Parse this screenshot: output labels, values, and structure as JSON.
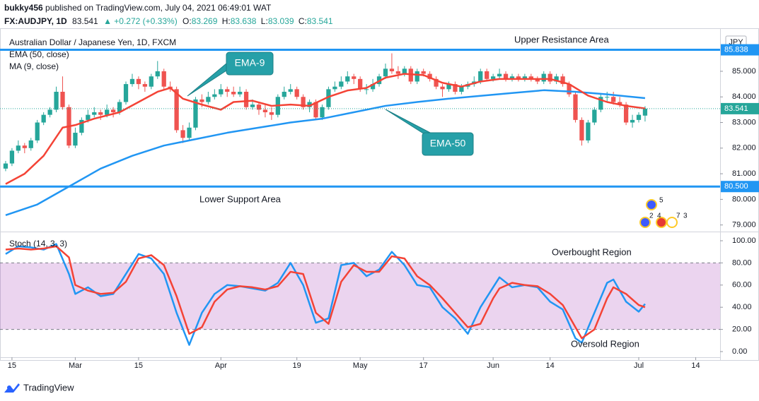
{
  "header": {
    "author": "bukky456",
    "published": " published on TradingView.com, July 04, 2021 06:49:01 WAT",
    "symbol": "FX:AUDJPY, 1D",
    "price": "83.541",
    "change": "▲ +0.272 (+0.33%)",
    "quote": [
      {
        "label": "O:",
        "value": "83.269"
      },
      {
        "label": "H:",
        "value": "83.638"
      },
      {
        "label": "L:",
        "value": "83.039"
      },
      {
        "label": "C:",
        "value": "83.541"
      }
    ]
  },
  "chart_data": [
    {
      "type": "candlestick",
      "title": "Australian Dollar / Japanese Yen, 1D, FXCM",
      "currency": "JPY",
      "up_color": "#26a69a",
      "down_color": "#ef5350",
      "xlim": [
        -0.89,
        112.85
      ],
      "ylim": [
        78.77,
        86.68
      ],
      "yticks": [
        {
          "value": 79,
          "label": "79.000"
        },
        {
          "value": 80,
          "label": "80.000"
        },
        {
          "value": 81,
          "label": "81.000"
        },
        {
          "value": 82,
          "label": "82.000"
        },
        {
          "value": 83,
          "label": "83.000"
        },
        {
          "value": 84,
          "label": "84.000"
        },
        {
          "value": 85,
          "label": "85.000"
        }
      ],
      "levels": [
        85.838,
        {
          "value": 80.5,
          "label": "80.500"
        }
      ],
      "level_color": "#2196f3",
      "last_price": 83.541,
      "annotations": [
        "Upper Resistance Area",
        "Lower Support Area",
        "EMA-9",
        "EMA-50"
      ],
      "events": [
        "5",
        "2",
        "4",
        "7",
        "3"
      ],
      "ohlc": [
        [
          81.2,
          81.5,
          81.1,
          81.4
        ],
        [
          81.4,
          82.0,
          81.3,
          81.9
        ],
        [
          81.9,
          82.3,
          81.8,
          82.1
        ],
        [
          82.1,
          82.2,
          81.8,
          82.0
        ],
        [
          82.0,
          82.4,
          81.9,
          82.3
        ],
        [
          82.3,
          83.1,
          82.2,
          83.0
        ],
        [
          83.0,
          83.4,
          82.9,
          83.3
        ],
        [
          83.3,
          83.6,
          83.2,
          83.5
        ],
        [
          83.5,
          84.4,
          83.4,
          84.2
        ],
        [
          84.2,
          84.8,
          83.5,
          83.6
        ],
        [
          83.6,
          83.7,
          82.0,
          82.1
        ],
        [
          82.1,
          82.8,
          82.0,
          82.6
        ],
        [
          82.6,
          83.2,
          82.5,
          83.1
        ],
        [
          83.1,
          83.5,
          83.0,
          83.3
        ],
        [
          83.3,
          83.6,
          83.2,
          83.4
        ],
        [
          83.4,
          83.5,
          83.1,
          83.3
        ],
        [
          83.3,
          83.7,
          83.2,
          83.5
        ],
        [
          83.5,
          83.6,
          83.2,
          83.4
        ],
        [
          83.4,
          83.9,
          83.3,
          83.8
        ],
        [
          83.8,
          84.6,
          83.7,
          84.5
        ],
        [
          84.5,
          84.9,
          84.4,
          84.7
        ],
        [
          84.7,
          84.8,
          84.3,
          84.5
        ],
        [
          84.5,
          84.6,
          84.2,
          84.4
        ],
        [
          84.4,
          84.9,
          84.3,
          84.8
        ],
        [
          84.8,
          85.4,
          84.7,
          85.0
        ],
        [
          85.0,
          85.1,
          84.3,
          84.4
        ],
        [
          84.4,
          84.6,
          84.2,
          84.3
        ],
        [
          84.3,
          84.4,
          82.6,
          82.7
        ],
        [
          82.7,
          82.9,
          82.2,
          82.4
        ],
        [
          82.4,
          83.0,
          82.3,
          82.8
        ],
        [
          82.8,
          84.0,
          82.7,
          83.9
        ],
        [
          83.9,
          84.1,
          83.6,
          83.8
        ],
        [
          83.8,
          84.2,
          83.7,
          84.0
        ],
        [
          84.0,
          84.3,
          83.9,
          84.1
        ],
        [
          84.1,
          84.5,
          84.0,
          84.3
        ],
        [
          84.3,
          84.4,
          84.0,
          84.2
        ],
        [
          84.2,
          84.4,
          84.0,
          84.1
        ],
        [
          84.1,
          84.4,
          84.0,
          84.2
        ],
        [
          84.2,
          84.3,
          83.5,
          83.6
        ],
        [
          83.6,
          83.9,
          83.5,
          83.7
        ],
        [
          83.7,
          83.8,
          83.3,
          83.5
        ],
        [
          83.5,
          83.7,
          83.2,
          83.4
        ],
        [
          83.4,
          83.6,
          83.1,
          83.3
        ],
        [
          83.3,
          84.1,
          83.2,
          84.0
        ],
        [
          84.0,
          84.4,
          83.9,
          84.2
        ],
        [
          84.2,
          84.5,
          84.1,
          84.3
        ],
        [
          84.3,
          84.4,
          83.9,
          84.0
        ],
        [
          84.0,
          84.1,
          83.5,
          83.6
        ],
        [
          83.6,
          83.9,
          83.4,
          83.8
        ],
        [
          83.8,
          83.9,
          83.1,
          83.2
        ],
        [
          83.2,
          83.7,
          83.1,
          83.6
        ],
        [
          83.6,
          84.4,
          83.5,
          84.3
        ],
        [
          84.3,
          84.6,
          84.2,
          84.4
        ],
        [
          84.4,
          84.8,
          84.3,
          84.6
        ],
        [
          84.6,
          85.0,
          84.5,
          84.8
        ],
        [
          84.8,
          84.9,
          84.5,
          84.7
        ],
        [
          84.7,
          84.8,
          84.2,
          84.3
        ],
        [
          84.3,
          84.5,
          84.1,
          84.3
        ],
        [
          84.3,
          84.7,
          84.2,
          84.5
        ],
        [
          84.5,
          84.9,
          84.4,
          84.8
        ],
        [
          84.8,
          85.3,
          84.7,
          85.1
        ],
        [
          85.1,
          85.7,
          84.9,
          85.0
        ],
        [
          85.0,
          85.2,
          84.7,
          84.9
        ],
        [
          84.9,
          85.2,
          84.8,
          85.1
        ],
        [
          85.1,
          85.2,
          84.5,
          84.6
        ],
        [
          84.6,
          85.1,
          84.5,
          85.0
        ],
        [
          85.0,
          85.1,
          84.8,
          84.9
        ],
        [
          84.9,
          85.0,
          84.6,
          84.7
        ],
        [
          84.7,
          84.8,
          84.3,
          84.4
        ],
        [
          84.4,
          84.5,
          84.0,
          84.3
        ],
        [
          84.3,
          84.6,
          84.2,
          84.5
        ],
        [
          84.5,
          84.6,
          84.1,
          84.2
        ],
        [
          84.2,
          84.5,
          84.1,
          84.4
        ],
        [
          84.4,
          84.6,
          84.3,
          84.5
        ],
        [
          84.5,
          84.8,
          84.4,
          84.6
        ],
        [
          84.6,
          85.1,
          84.5,
          85.0
        ],
        [
          85.0,
          85.1,
          84.6,
          84.7
        ],
        [
          84.7,
          84.9,
          84.6,
          84.8
        ],
        [
          84.8,
          85.1,
          84.7,
          84.9
        ],
        [
          84.9,
          85.0,
          84.6,
          84.7
        ],
        [
          84.7,
          84.9,
          84.6,
          84.8
        ],
        [
          84.8,
          84.9,
          84.6,
          84.7
        ],
        [
          84.7,
          84.9,
          84.6,
          84.8
        ],
        [
          84.8,
          84.9,
          84.6,
          84.7
        ],
        [
          84.7,
          84.8,
          84.5,
          84.6
        ],
        [
          84.6,
          85.0,
          84.5,
          84.9
        ],
        [
          84.9,
          85.0,
          84.5,
          84.6
        ],
        [
          84.6,
          84.9,
          84.5,
          84.8
        ],
        [
          84.8,
          84.9,
          84.4,
          84.5
        ],
        [
          84.5,
          84.6,
          84.0,
          84.1
        ],
        [
          84.1,
          84.2,
          83.0,
          83.1
        ],
        [
          83.1,
          83.2,
          82.1,
          82.3
        ],
        [
          82.3,
          83.1,
          82.2,
          83.0
        ],
        [
          83.0,
          83.6,
          82.9,
          83.5
        ],
        [
          83.5,
          84.1,
          83.4,
          84.0
        ],
        [
          84.0,
          84.2,
          83.8,
          84.0
        ],
        [
          84.0,
          84.2,
          83.7,
          83.8
        ],
        [
          83.8,
          84.0,
          83.6,
          83.7
        ],
        [
          83.7,
          83.8,
          82.9,
          83.0
        ],
        [
          83.0,
          83.3,
          82.8,
          83.1
        ],
        [
          83.1,
          83.4,
          83.0,
          83.3
        ],
        [
          83.269,
          83.638,
          83.039,
          83.541
        ]
      ],
      "series": [
        {
          "name": "EMA (50, close)",
          "color": "#2196f3",
          "x": [
            0,
            5,
            10,
            15,
            20,
            25,
            30,
            35,
            40,
            45,
            50,
            55,
            60,
            65,
            70,
            75,
            80,
            85,
            90,
            95,
            101
          ],
          "values": [
            79.38,
            79.8,
            80.5,
            81.2,
            81.7,
            82.1,
            82.35,
            82.6,
            82.8,
            83.0,
            83.15,
            83.4,
            83.65,
            83.8,
            83.93,
            84.04,
            84.15,
            84.26,
            84.2,
            84.1,
            83.95
          ]
        },
        {
          "name": "MA (9, close)",
          "color": "#f44336",
          "x": [
            0,
            3,
            6,
            9,
            11,
            14,
            18,
            21,
            24,
            26,
            28,
            31,
            34,
            36,
            39,
            42,
            45,
            48,
            51,
            54,
            57,
            60,
            63,
            66,
            69,
            72,
            75,
            78,
            82,
            86,
            89,
            92,
            95,
            98,
            101
          ],
          "values": [
            80.6,
            81.0,
            81.7,
            82.8,
            82.9,
            83.15,
            83.4,
            83.8,
            84.2,
            84.35,
            83.93,
            83.7,
            83.5,
            83.8,
            83.85,
            83.65,
            83.7,
            83.65,
            84.0,
            84.25,
            84.35,
            84.75,
            84.9,
            84.85,
            84.55,
            84.4,
            84.6,
            84.7,
            84.7,
            84.7,
            84.5,
            84.05,
            83.8,
            83.65,
            83.55
          ]
        }
      ]
    },
    {
      "type": "line",
      "title": "Stoch (14, 3, 3)",
      "xlim": [
        -0.89,
        112.85
      ],
      "ylim": [
        -5.1,
        107
      ],
      "yticks": [
        {
          "value": 0,
          "label": "0.00"
        },
        {
          "value": 20,
          "label": "20.00"
        },
        {
          "value": 40,
          "label": "40.00"
        },
        {
          "value": 60,
          "label": "60.00"
        },
        {
          "value": 80,
          "label": "80.00"
        },
        {
          "value": 100,
          "label": "100.00"
        }
      ],
      "xticks": [
        {
          "value": 1,
          "label": "15"
        },
        {
          "value": 11,
          "label": "Mar"
        },
        {
          "value": 21,
          "label": "15"
        },
        {
          "value": 34,
          "label": "Apr"
        },
        {
          "value": 46,
          "label": "19"
        },
        {
          "value": 56,
          "label": "May"
        },
        {
          "value": 66,
          "label": "17"
        },
        {
          "value": 77,
          "label": "Jun"
        },
        {
          "value": 86,
          "label": "14"
        },
        {
          "value": 100,
          "label": "Jul"
        },
        {
          "value": 109,
          "label": "14"
        }
      ],
      "bands": [
        20,
        80
      ],
      "band_color": "#9c27b0",
      "annotations": [
        "Overbought Region",
        "Oversold Region"
      ],
      "series": [
        {
          "color": "#2196f3",
          "x": [
            0,
            2,
            4,
            6,
            8,
            10,
            11,
            13,
            15,
            17,
            19,
            21,
            23,
            25,
            27,
            29,
            31,
            33,
            35,
            37,
            39,
            41,
            43,
            45,
            47,
            49,
            51,
            53,
            55,
            57,
            59,
            61,
            63,
            65,
            67,
            69,
            71,
            73,
            75,
            77,
            78,
            80,
            82,
            84,
            86,
            88,
            90,
            91,
            93,
            95,
            96,
            98,
            100,
            101
          ],
          "values": [
            88,
            95,
            94,
            92,
            97,
            70,
            52,
            58,
            50,
            52,
            70,
            88,
            84,
            70,
            35,
            6,
            35,
            52,
            60,
            59,
            57,
            55,
            62,
            80,
            60,
            26,
            30,
            78,
            80,
            68,
            74,
            90,
            78,
            60,
            58,
            40,
            30,
            16,
            40,
            58,
            67,
            58,
            60,
            58,
            45,
            38,
            12,
            8,
            35,
            62,
            65,
            45,
            36,
            43
          ]
        },
        {
          "color": "#f44336",
          "x": [
            0,
            2,
            4,
            6,
            8,
            10,
            11,
            13,
            15,
            17,
            19,
            21,
            23,
            25,
            27,
            29,
            31,
            33,
            35,
            37,
            39,
            41,
            43,
            45,
            47,
            49,
            51,
            53,
            55,
            57,
            59,
            61,
            63,
            65,
            67,
            69,
            71,
            73,
            75,
            77,
            78,
            80,
            82,
            84,
            86,
            88,
            90,
            91,
            93,
            95,
            96,
            98,
            100,
            101
          ],
          "values": [
            92,
            93,
            92,
            93,
            95,
            85,
            60,
            55,
            52,
            53,
            63,
            84,
            87,
            78,
            50,
            16,
            22,
            45,
            56,
            59,
            58,
            56,
            59,
            72,
            70,
            35,
            25,
            63,
            78,
            72,
            72,
            86,
            84,
            68,
            60,
            48,
            35,
            22,
            25,
            48,
            57,
            62,
            60,
            59,
            52,
            42,
            22,
            12,
            20,
            48,
            58,
            52,
            42,
            40
          ]
        }
      ]
    }
  ],
  "footer": {
    "brand": "TradingView"
  }
}
